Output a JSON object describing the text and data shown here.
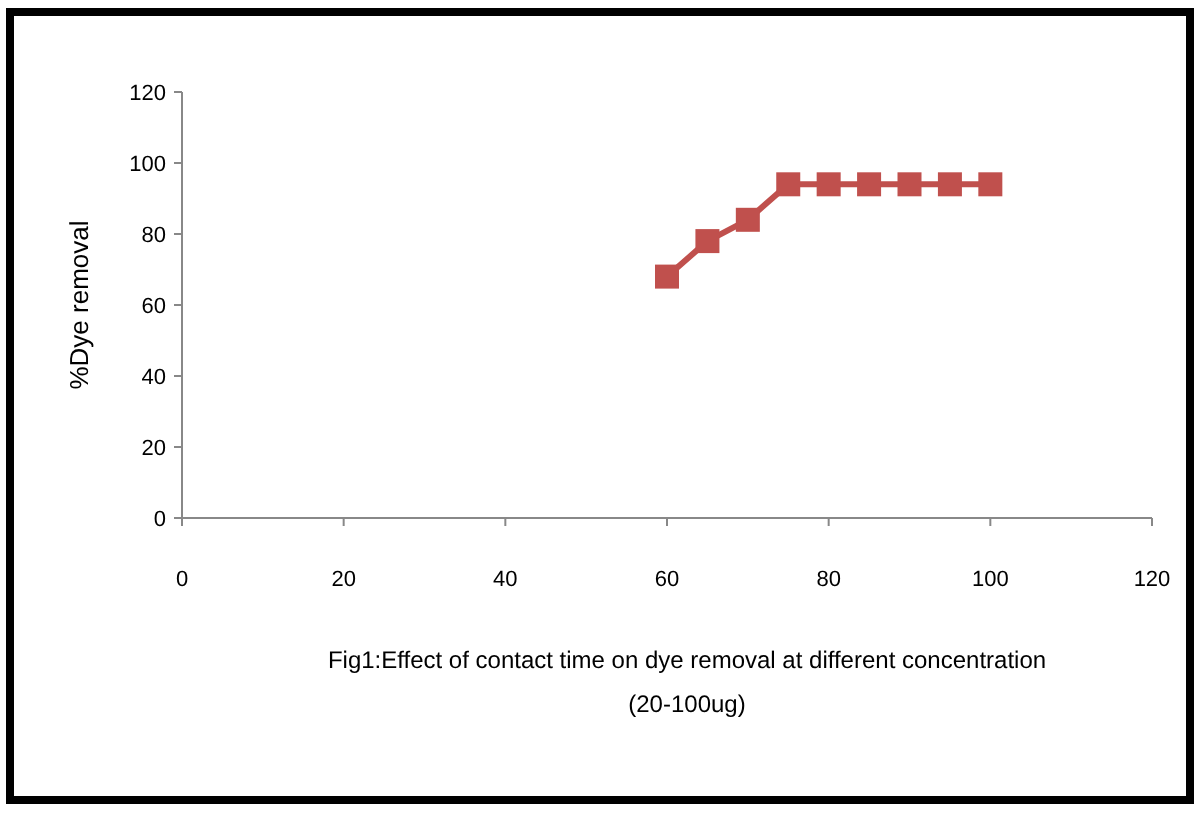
{
  "chart_data": {
    "type": "line",
    "xlabel": "Fig1:Effect of contact time on dye removal at different concentration (20-100ug)",
    "ylabel": "%Dye removal",
    "x": [
      60,
      65,
      70,
      75,
      80,
      85,
      90,
      95,
      100
    ],
    "series": [
      {
        "color": "#c0504d",
        "values": [
          68,
          78,
          84,
          94,
          94,
          94,
          94,
          94,
          94
        ]
      }
    ],
    "xlim": [
      0,
      120
    ],
    "xticks": [
      0,
      20,
      40,
      60,
      80,
      100,
      120
    ],
    "ylim": [
      0,
      120
    ],
    "yticks": [
      0,
      20,
      40,
      60,
      80,
      100,
      120
    ],
    "marker": "square",
    "line_style": "solid",
    "grid": false
  }
}
